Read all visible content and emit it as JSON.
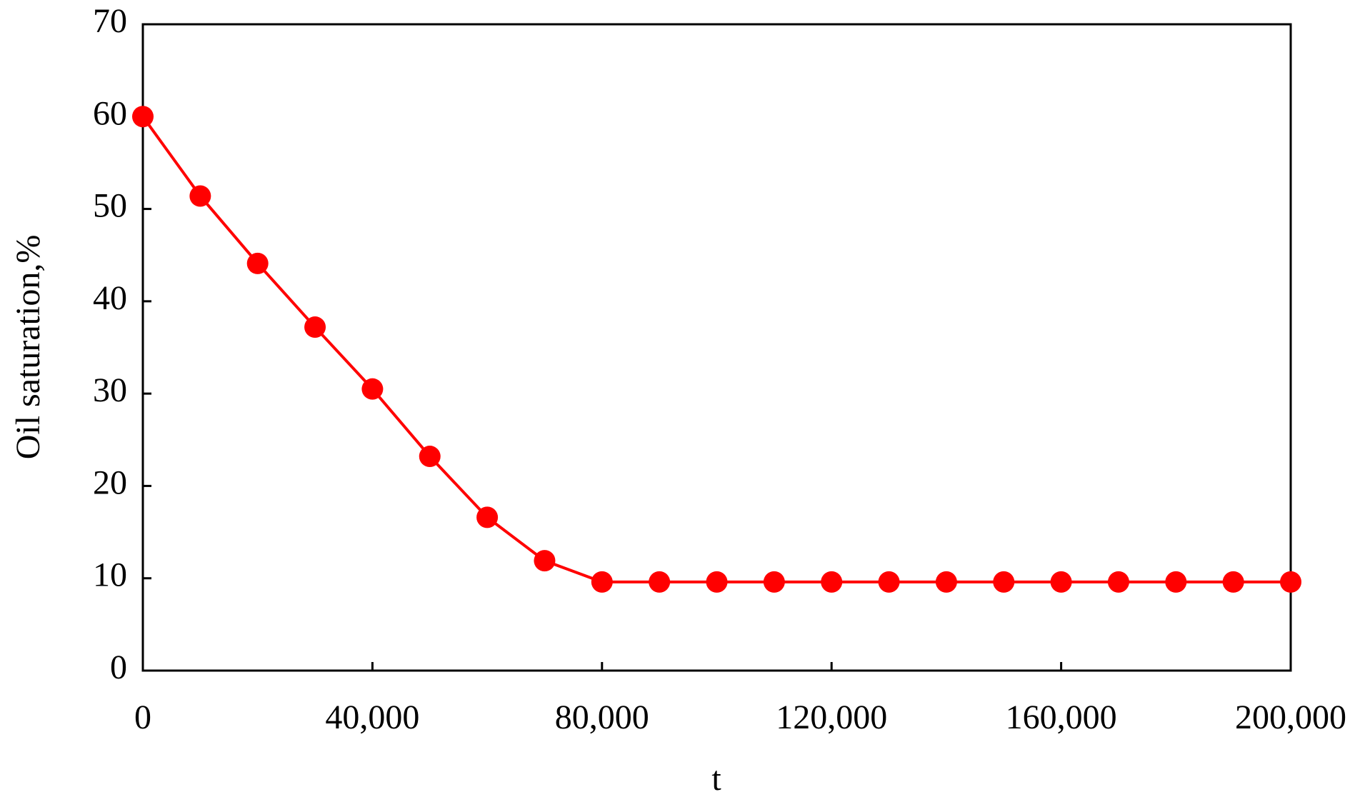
{
  "chart_data": {
    "type": "line",
    "x_label": "t",
    "y_label": "Oil saturation,%",
    "x": [
      0,
      10000,
      20000,
      30000,
      40000,
      50000,
      60000,
      70000,
      80000,
      90000,
      100000,
      110000,
      120000,
      130000,
      140000,
      150000,
      160000,
      170000,
      180000,
      190000,
      200000
    ],
    "series": [
      {
        "name": "Oil saturation",
        "color": "#ff0000",
        "values": [
          60,
          51.4,
          44.1,
          37.2,
          30.5,
          23.2,
          16.6,
          11.9,
          9.6,
          9.6,
          9.6,
          9.6,
          9.6,
          9.6,
          9.6,
          9.6,
          9.6,
          9.6,
          9.6,
          9.6,
          9.6
        ]
      }
    ],
    "xlim": [
      0,
      200000
    ],
    "xticks": [
      0,
      {
        "value": 40000,
        "label": "40,000"
      },
      {
        "value": 80000,
        "label": "80,000"
      },
      {
        "value": 120000,
        "label": "120,000"
      },
      {
        "value": 160000,
        "label": "160,000"
      },
      {
        "value": 200000,
        "label": "200,000"
      }
    ],
    "ylim": [
      0,
      70
    ],
    "yticks": [
      0,
      10,
      20,
      30,
      40,
      50,
      60,
      70
    ],
    "grid": false
  }
}
